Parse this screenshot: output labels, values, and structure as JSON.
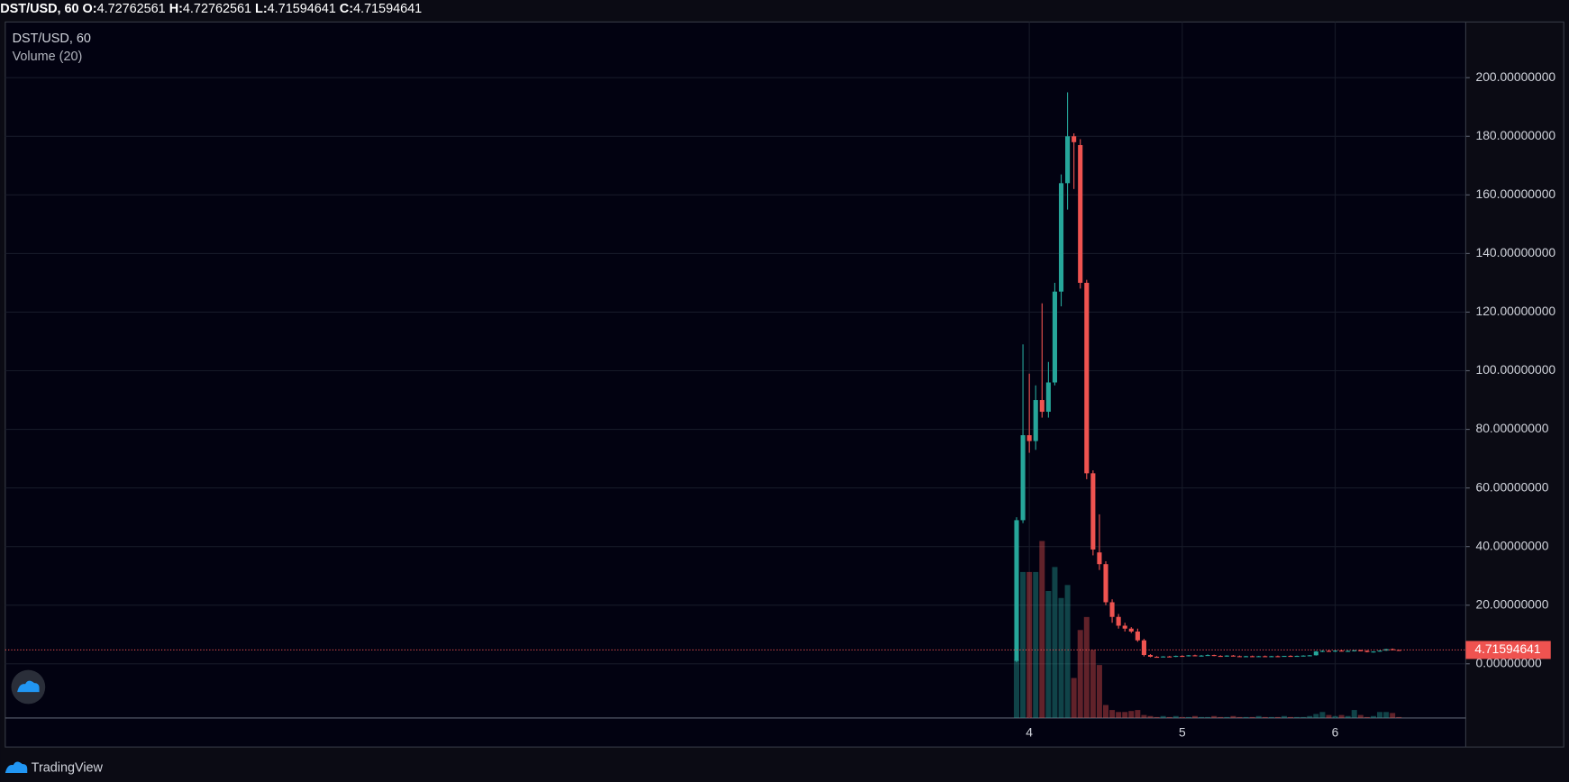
{
  "chart_data": {
    "type": "candlestick",
    "legend": {
      "symbol": "DST/USD, 60",
      "fields": [
        {
          "label": "O:",
          "value": 4.72762561
        },
        {
          "label": "H:",
          "value": 4.72762561
        },
        {
          "label": "L:",
          "value": 4.71594641
        },
        {
          "label": "C:",
          "value": 4.71594641
        }
      ]
    },
    "title": "DST/USD, 60",
    "volume_title": "Volume (20)",
    "branding": "TradingView",
    "up_color": "#26a69a",
    "down_color": "#ef5350",
    "categories": [
      null,
      null,
      "4",
      null,
      null,
      null,
      null,
      null,
      null,
      null,
      null,
      null,
      null,
      null,
      null,
      null,
      null,
      null,
      null,
      null,
      null,
      null,
      null,
      null,
      null,
      null,
      "5",
      null,
      null,
      null,
      null,
      null,
      null,
      null,
      null,
      null,
      null,
      null,
      null,
      null,
      null,
      null,
      null,
      null,
      null,
      null,
      null,
      null,
      null,
      null,
      "6",
      null,
      null,
      null,
      null,
      null,
      null,
      null,
      null,
      null,
      null
    ],
    "open": [
      1,
      49,
      78,
      76,
      90,
      86,
      96,
      127,
      164,
      180,
      177,
      130,
      65,
      38,
      34,
      21,
      16,
      13,
      12,
      11,
      8,
      3,
      2.4,
      2.3,
      2.5,
      2.4,
      2.7,
      2.6,
      2.9,
      2.7,
      2.8,
      3.0,
      2.7,
      2.6,
      2.8,
      2.6,
      2.5,
      2.6,
      2.5,
      2.6,
      2.5,
      2.6,
      2.5,
      2.7,
      2.6,
      2.7,
      2.8,
      2.9,
      4.2,
      4.4,
      4.3,
      4.5,
      4.3,
      4.4,
      4.6,
      4.4,
      4.0,
      4.2,
      4.5,
      5.0,
      4.72762561
    ],
    "high": [
      50,
      109,
      99,
      95,
      123,
      103,
      130,
      167,
      195,
      181,
      179,
      131,
      66,
      51,
      35,
      22,
      17,
      14,
      12.5,
      12,
      8.5,
      3.3,
      2.6,
      2.6,
      2.7,
      2.8,
      2.9,
      3.0,
      3.1,
      3.0,
      3.2,
      3.1,
      2.9,
      2.9,
      3.0,
      2.8,
      2.7,
      2.8,
      2.7,
      2.8,
      2.7,
      2.8,
      2.7,
      2.9,
      2.8,
      2.9,
      3.0,
      4.4,
      4.6,
      4.7,
      4.6,
      4.8,
      4.6,
      4.7,
      4.8,
      4.6,
      4.3,
      4.6,
      5.1,
      5.2,
      4.72762561
    ],
    "low": [
      0.5,
      48,
      72,
      73,
      84,
      84,
      95,
      122,
      155,
      162,
      128,
      63,
      37,
      32,
      20,
      14,
      12,
      11,
      10.5,
      7.5,
      2.5,
      2.2,
      2.1,
      2.2,
      2.3,
      2.3,
      2.5,
      2.5,
      2.6,
      2.5,
      2.7,
      2.6,
      2.5,
      2.4,
      2.5,
      2.4,
      2.3,
      2.4,
      2.4,
      2.4,
      2.3,
      2.4,
      2.4,
      2.5,
      2.4,
      2.5,
      2.6,
      2.8,
      4.0,
      4.1,
      4.0,
      4.2,
      4.1,
      4.2,
      4.3,
      3.9,
      3.8,
      4.1,
      4.4,
      4.6,
      4.71594641
    ],
    "close": [
      49,
      78,
      76,
      90,
      86,
      96,
      127,
      164,
      180,
      178,
      130,
      65,
      39,
      34,
      21,
      16,
      13,
      12,
      11,
      8,
      3,
      2.4,
      2.3,
      2.5,
      2.4,
      2.7,
      2.6,
      2.9,
      2.7,
      2.8,
      3.0,
      2.7,
      2.6,
      2.8,
      2.6,
      2.5,
      2.6,
      2.5,
      2.6,
      2.5,
      2.6,
      2.5,
      2.7,
      2.6,
      2.7,
      2.8,
      2.9,
      4.2,
      4.4,
      4.3,
      4.5,
      4.3,
      4.4,
      4.6,
      4.4,
      4.0,
      4.2,
      4.5,
      5.0,
      4.72762561,
      4.71594641
    ],
    "volume": [
      58,
      146,
      146,
      146,
      177,
      127,
      151,
      120,
      133,
      40,
      88,
      101,
      68,
      53,
      13,
      8,
      6,
      6,
      7,
      8,
      3,
      2,
      1,
      2,
      1,
      2,
      1,
      1,
      2,
      1,
      1,
      2,
      1,
      1,
      2,
      1,
      1,
      1,
      2,
      1,
      1,
      1,
      2,
      1,
      1,
      1,
      2,
      4,
      6,
      3,
      2,
      3,
      2,
      8,
      3,
      1,
      2,
      6,
      6,
      5,
      1
    ],
    "ylim": [
      -18.5,
      219
    ],
    "yticks": [
      {
        "value": 0,
        "label": "0.00000000"
      },
      {
        "value": 20,
        "label": "20.00000000"
      },
      {
        "value": 40,
        "label": "40.00000000"
      },
      {
        "value": 60,
        "label": "60.00000000"
      },
      {
        "value": 80,
        "label": "80.00000000"
      },
      {
        "value": 100,
        "label": "100.00000000"
      },
      {
        "value": 120,
        "label": "120.00000000"
      },
      {
        "value": 140,
        "label": "140.00000000"
      },
      {
        "value": 160,
        "label": "160.00000000"
      },
      {
        "value": 180,
        "label": "180.00000000"
      },
      {
        "value": 200,
        "label": "200.00000000"
      }
    ],
    "grid": true
  }
}
